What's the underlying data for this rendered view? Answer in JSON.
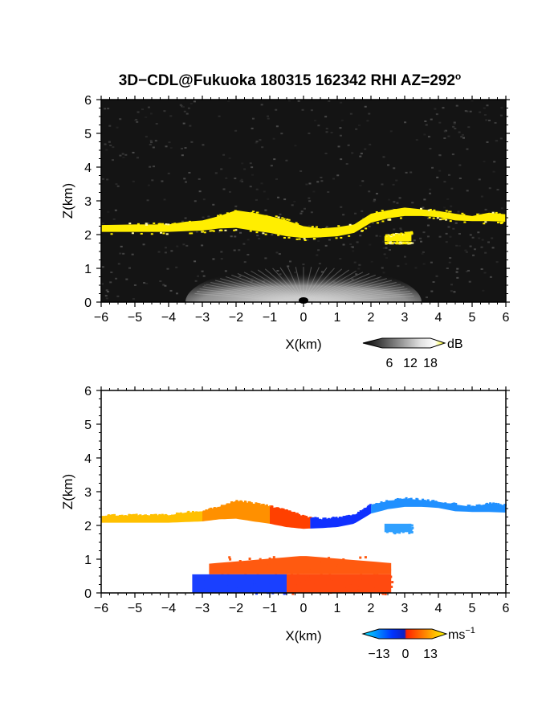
{
  "title": "3D−CDL@Fukuoka 180315 162342 RHI AZ=292",
  "title_superscript": "o",
  "chart_data": [
    {
      "type": "heatmap",
      "quantity": "reflectivity",
      "xlabel": "X(km)",
      "ylabel": "Z(km)",
      "xlim": [
        -6,
        6
      ],
      "ylim": [
        0,
        6
      ],
      "x_ticks": [
        "−6",
        "−5",
        "−4",
        "−3",
        "−2",
        "−1",
        "0",
        "1",
        "2",
        "3",
        "4",
        "5",
        "6"
      ],
      "y_ticks": [
        "0",
        "1",
        "2",
        "3",
        "4",
        "5",
        "6"
      ],
      "background_color": "#141414",
      "colorbar": {
        "unit": "dB",
        "ticks": [
          "6",
          "12",
          "18"
        ],
        "range": [
          0,
          20
        ],
        "colors": [
          "#000000",
          "#ffffff",
          "#ffff00"
        ]
      },
      "layers": [
        {
          "name": "cloud-base-layer",
          "value_db": 19,
          "color": "#ffee00",
          "x": [
            -6.0,
            -5.0,
            -4.0,
            -3.5,
            -3.0,
            -2.5,
            -2.0,
            -1.5,
            -1.0,
            -0.5,
            0.0,
            0.5,
            1.0,
            1.5,
            2.0,
            2.5,
            3.0,
            3.5,
            4.0,
            4.5,
            5.0,
            5.5,
            6.0
          ],
          "z_bottom": [
            2.08,
            2.08,
            2.08,
            2.1,
            2.12,
            2.18,
            2.2,
            2.12,
            2.05,
            1.95,
            1.9,
            1.92,
            1.95,
            2.05,
            2.35,
            2.48,
            2.55,
            2.55,
            2.52,
            2.42,
            2.4,
            2.4,
            2.38
          ],
          "z_top": [
            2.28,
            2.3,
            2.3,
            2.38,
            2.42,
            2.55,
            2.72,
            2.65,
            2.55,
            2.42,
            2.25,
            2.18,
            2.22,
            2.3,
            2.62,
            2.72,
            2.8,
            2.75,
            2.7,
            2.62,
            2.55,
            2.65,
            2.6
          ]
        },
        {
          "name": "small-patch",
          "value_db": 19,
          "color": "#ffee00",
          "x": [
            2.4,
            3.2
          ],
          "z_bottom": [
            1.8,
            1.8
          ],
          "z_top": [
            1.95,
            2.05
          ]
        }
      ],
      "ground_clutter": {
        "x_range": [
          -3.5,
          3.5
        ],
        "z_top": 1.1,
        "color": "#a0a0a0"
      }
    },
    {
      "type": "heatmap",
      "quantity": "doppler-velocity",
      "xlabel": "X(km)",
      "ylabel": "Z(km)",
      "xlim": [
        -6,
        6
      ],
      "ylim": [
        0,
        6
      ],
      "x_ticks": [
        "−6",
        "−5",
        "−4",
        "−3",
        "−2",
        "−1",
        "0",
        "1",
        "2",
        "3",
        "4",
        "5",
        "6"
      ],
      "y_ticks": [
        "0",
        "1",
        "2",
        "3",
        "4",
        "5",
        "6"
      ],
      "background_color": "#ffffff",
      "colorbar": {
        "unit": "ms",
        "unit_superscript": "−1",
        "ticks": [
          "−13",
          "0",
          "13"
        ],
        "range": [
          -13,
          13
        ],
        "colors": [
          "#00e5ff",
          "#0033ff",
          "#ff2200",
          "#ffff00"
        ]
      },
      "segments": [
        {
          "name": "upper-layer-west",
          "x_range": [
            -6,
            -3
          ],
          "z_bottom": 2.08,
          "z_top": 2.3,
          "velocity": 9,
          "color": "#ffc000"
        },
        {
          "name": "upper-layer-mid",
          "x_range": [
            -3,
            -1
          ],
          "z_bottom": 2.15,
          "z_top": 2.7,
          "velocity": 6,
          "color": "#ff9000"
        },
        {
          "name": "upper-layer-center",
          "x_range": [
            -1,
            0.2
          ],
          "z_bottom": 1.9,
          "z_top": 2.6,
          "velocity": 3,
          "color": "#ff4000"
        },
        {
          "name": "upper-layer-east",
          "x_range": [
            0.2,
            2
          ],
          "z_bottom": 1.9,
          "z_top": 2.3,
          "velocity": -4,
          "color": "#1030ff"
        },
        {
          "name": "upper-layer-far-east",
          "x_range": [
            2,
            6
          ],
          "z_bottom": 2.38,
          "z_top": 2.8,
          "velocity": -10,
          "color": "#2090ff"
        },
        {
          "name": "small-patch",
          "x_range": [
            2.4,
            3.2
          ],
          "z_bottom": 1.8,
          "z_top": 2.05,
          "velocity": -9,
          "color": "#30a0ff"
        },
        {
          "name": "lower-layer-top",
          "x_range": [
            -2.8,
            2.6
          ],
          "z_bottom": 0.55,
          "z_top": 1.1,
          "velocity": 4,
          "color": "#ff5a10"
        },
        {
          "name": "lower-layer-bottom-west",
          "x_range": [
            -3.3,
            -0.5
          ],
          "z_bottom": 0.0,
          "z_top": 0.55,
          "velocity": -5,
          "color": "#1a40ff"
        },
        {
          "name": "lower-layer-bottom-east",
          "x_range": [
            -0.5,
            2.6
          ],
          "z_bottom": 0.0,
          "z_top": 0.55,
          "velocity": 5,
          "color": "#ff4a10"
        }
      ]
    }
  ]
}
